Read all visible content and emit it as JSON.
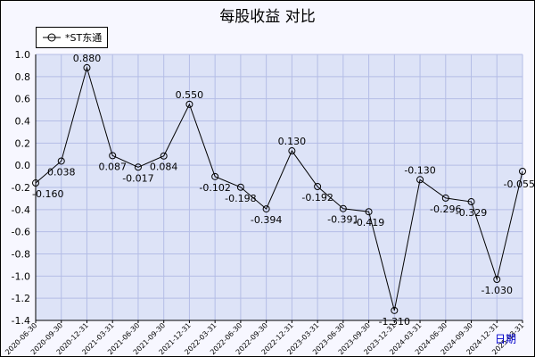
{
  "title": "每股收益 对比",
  "x_unit_label": "日期",
  "colors": {
    "plot_bg": "#dde3f7",
    "grid": "#b4bde6",
    "line": "#000000",
    "frame_bg": "#f7f7ff"
  },
  "chart_data": {
    "type": "line",
    "title": "每股收益 对比",
    "xlabel": "日期",
    "ylabel": "",
    "ylim": [
      -1.4,
      1.0
    ],
    "yticks": [
      1.0,
      0.8,
      0.6,
      0.4,
      0.2,
      0.0,
      -0.2,
      -0.4,
      -0.6,
      -0.8,
      -1.0,
      -1.2,
      -1.4
    ],
    "grid": true,
    "legend_position": "top-left",
    "categories": [
      "2020-06-30",
      "2020-09-30",
      "2020-12-31",
      "2021-03-31",
      "2021-06-30",
      "2021-09-30",
      "2021-12-31",
      "2022-03-31",
      "2022-06-30",
      "2022-09-30",
      "2022-12-31",
      "2023-03-31",
      "2023-06-30",
      "2023-09-30",
      "2023-12-31",
      "2024-03-31",
      "2024-06-30",
      "2024-09-30",
      "2024-12-31",
      "2025-03-31"
    ],
    "series": [
      {
        "name": "*ST东通",
        "values": [
          -0.16,
          0.038,
          0.88,
          0.087,
          -0.017,
          0.084,
          0.55,
          -0.102,
          -0.198,
          -0.394,
          0.13,
          -0.192,
          -0.391,
          -0.419,
          -1.31,
          -0.13,
          -0.296,
          -0.329,
          -1.03,
          -0.055
        ],
        "labels": [
          "-0.160",
          "0.038",
          "0.880",
          "0.087",
          "-0.017",
          "0.084",
          "0.550",
          "-0.102",
          "-0.198",
          "-0.394",
          "0.130",
          "-0.192",
          "-0.391",
          "-0.419",
          "-1.310",
          "-0.130",
          "-0.296",
          "-0.329",
          "-1.030",
          "-0.055"
        ]
      }
    ]
  }
}
